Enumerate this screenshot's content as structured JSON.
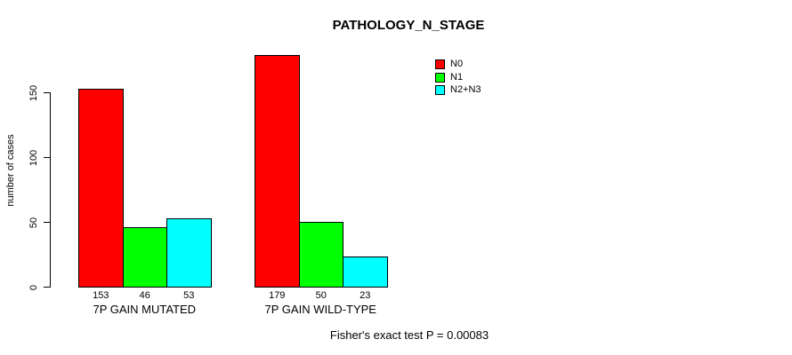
{
  "chart_data": {
    "type": "bar",
    "title": "PATHOLOGY_N_STAGE",
    "ylabel": "number of cases",
    "xlabel": "",
    "categories": [
      "7P GAIN MUTATED",
      "7P GAIN WILD-TYPE"
    ],
    "series": [
      {
        "name": "N0",
        "color": "#FF0000",
        "values": [
          153,
          179
        ]
      },
      {
        "name": "N1",
        "color": "#00FF00",
        "values": [
          46,
          50
        ]
      },
      {
        "name": "N2+N3",
        "color": "#00FFFF",
        "values": [
          53,
          23
        ]
      }
    ],
    "bar_value_labels": [
      [
        153,
        46,
        53
      ],
      [
        179,
        50,
        23
      ]
    ],
    "yticks": [
      0,
      50,
      100,
      150
    ],
    "ylim": [
      0,
      180
    ],
    "grid": false,
    "legend_position": "top-right",
    "annotation": "Fisher's exact test P = 0.00083"
  },
  "colors": {
    "background": "#FFFFFF",
    "axis": "#000000",
    "text": "#000000",
    "bar_border": "#000000"
  }
}
